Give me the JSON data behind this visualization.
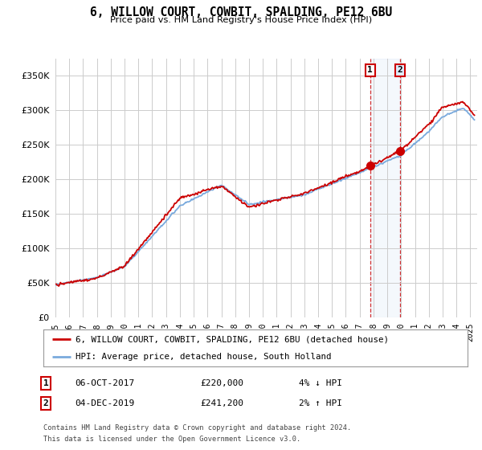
{
  "title": "6, WILLOW COURT, COWBIT, SPALDING, PE12 6BU",
  "subtitle": "Price paid vs. HM Land Registry's House Price Index (HPI)",
  "ytick_values": [
    0,
    50000,
    100000,
    150000,
    200000,
    250000,
    300000,
    350000
  ],
  "ylim": [
    0,
    375000
  ],
  "xlim_start": 1995.0,
  "xlim_end": 2025.5,
  "sale1_x": 2017.76,
  "sale1_y": 220000,
  "sale2_x": 2019.92,
  "sale2_y": 241200,
  "sale1_date": "06-OCT-2017",
  "sale1_price": "£220,000",
  "sale1_hpi": "4% ↓ HPI",
  "sale2_date": "04-DEC-2019",
  "sale2_price": "£241,200",
  "sale2_hpi": "2% ↑ HPI",
  "legend_line1": "6, WILLOW COURT, COWBIT, SPALDING, PE12 6BU (detached house)",
  "legend_line2": "HPI: Average price, detached house, South Holland",
  "footer1": "Contains HM Land Registry data © Crown copyright and database right 2024.",
  "footer2": "This data is licensed under the Open Government Licence v3.0.",
  "line_color_red": "#cc0000",
  "line_color_blue": "#7aaadd",
  "background_color": "#ffffff",
  "grid_color": "#cccccc",
  "xtick_years": [
    1995,
    1996,
    1997,
    1998,
    1999,
    2000,
    2001,
    2002,
    2003,
    2004,
    2005,
    2006,
    2007,
    2008,
    2009,
    2010,
    2011,
    2012,
    2013,
    2014,
    2015,
    2016,
    2017,
    2018,
    2019,
    2020,
    2021,
    2022,
    2023,
    2024,
    2025
  ]
}
